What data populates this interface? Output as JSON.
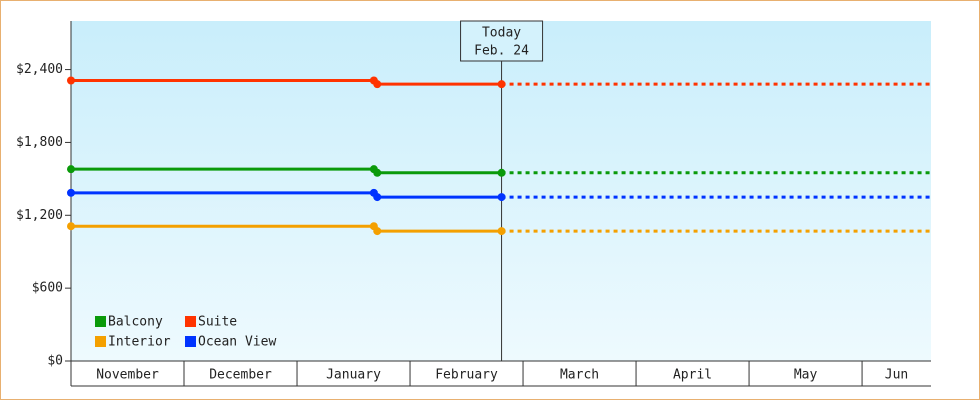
{
  "chart_data": {
    "type": "line",
    "categories": [
      "November",
      "December",
      "January",
      "February",
      "March",
      "April",
      "May",
      "Jun"
    ],
    "x": [
      0,
      2.68,
      2.71,
      3.81
    ],
    "xlim": [
      0,
      7.61
    ],
    "series": [
      {
        "name": "Balcony",
        "color": "#0a9a0a",
        "values": [
          1580,
          1580,
          1550,
          1550
        ]
      },
      {
        "name": "Suite",
        "color": "#ff3300",
        "values": [
          2310,
          2310,
          2280,
          2280
        ]
      },
      {
        "name": "Interior",
        "color": "#f4a000",
        "values": [
          1110,
          1110,
          1070,
          1070
        ]
      },
      {
        "name": "Ocean View",
        "color": "#0033ff",
        "values": [
          1385,
          1385,
          1350,
          1350
        ]
      }
    ],
    "ylim": [
      0,
      2800
    ],
    "yticks": [
      {
        "value": 0,
        "label": "$0"
      },
      {
        "value": 600,
        "label": "$600"
      },
      {
        "value": 1200,
        "label": "$1,200"
      },
      {
        "value": 1800,
        "label": "$1,800"
      },
      {
        "value": 2400,
        "label": "$2,400"
      }
    ],
    "annotation": {
      "x": 3.81,
      "label": [
        "Today",
        "Feb. 24"
      ]
    },
    "legend": "bottom-left"
  }
}
